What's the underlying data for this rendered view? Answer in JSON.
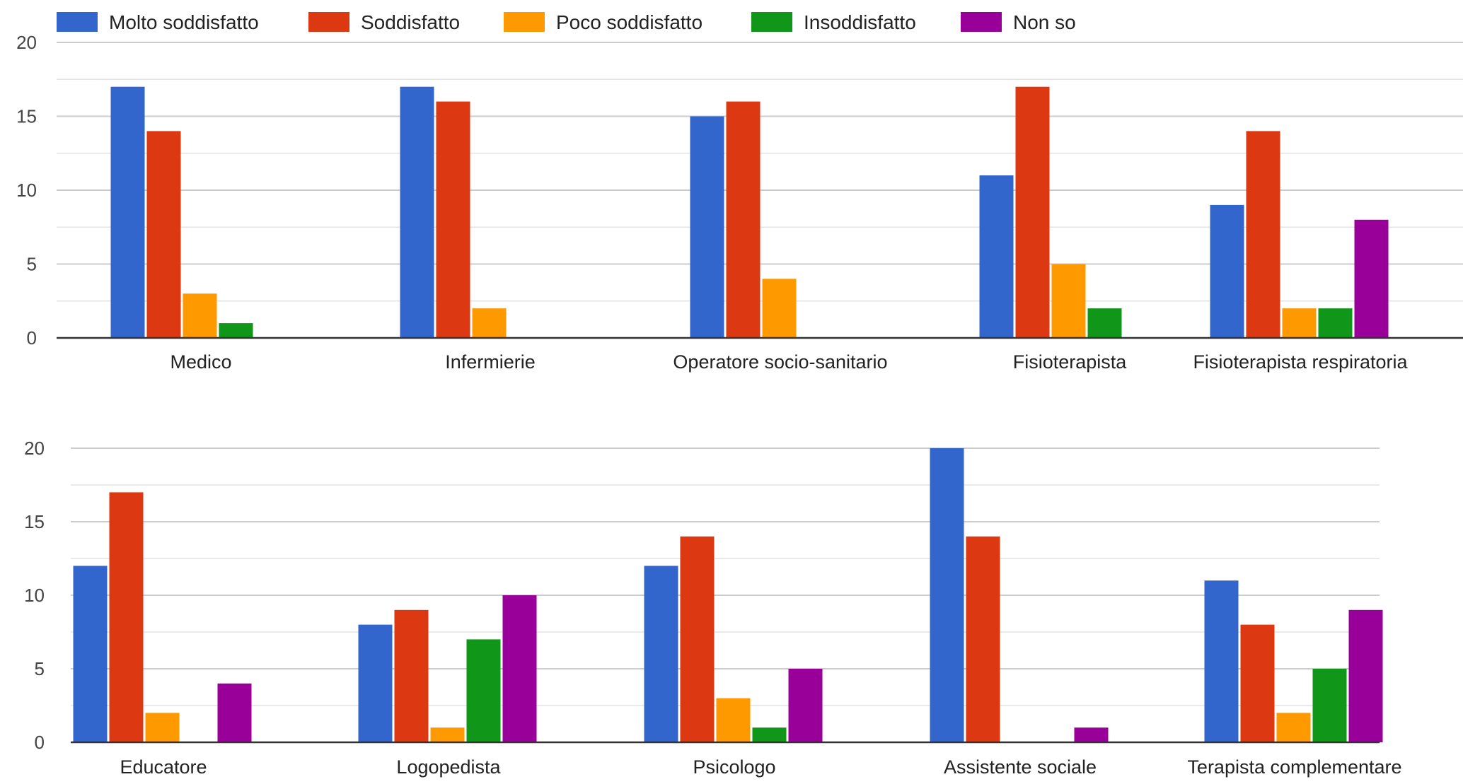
{
  "colors": {
    "Molto soddisfatto": "#3366cc",
    "Soddisfatto": "#dc3912",
    "Poco soddisfatto": "#ff9900",
    "Insoddisfatto": "#109618",
    "Non so": "#990099",
    "gridline": "#e3e3e3",
    "axis": "#333333"
  },
  "legend": {
    "position": "top-left",
    "items": [
      "Molto soddisfatto",
      "Soddisfatto",
      "Poco soddisfatto",
      "Insoddisfatto",
      "Non so"
    ]
  },
  "chart_data": [
    {
      "type": "bar",
      "title": "",
      "xlabel": "",
      "ylabel": "",
      "ylim": [
        0,
        20
      ],
      "yticks": [
        0,
        5,
        10,
        15,
        20
      ],
      "grid": true,
      "categories": [
        "Medico",
        "Infermierie",
        "Operatore socio-sanitario",
        "Fisioterapista",
        "Fisioterapista respiratoria"
      ],
      "series": [
        {
          "name": "Molto soddisfatto",
          "values": [
            17,
            17,
            15,
            11,
            9
          ]
        },
        {
          "name": "Soddisfatto",
          "values": [
            14,
            16,
            16,
            17,
            14
          ]
        },
        {
          "name": "Poco soddisfatto",
          "values": [
            3,
            2,
            4,
            5,
            2
          ]
        },
        {
          "name": "Insoddisfatto",
          "values": [
            1,
            0,
            0,
            2,
            2
          ]
        },
        {
          "name": "Non so",
          "values": [
            0,
            0,
            0,
            0,
            8
          ]
        }
      ]
    },
    {
      "type": "bar",
      "title": "",
      "xlabel": "",
      "ylabel": "",
      "ylim": [
        0,
        20
      ],
      "yticks": [
        0,
        5,
        10,
        15,
        20
      ],
      "grid": true,
      "categories": [
        "Educatore",
        "Logopedista",
        "Psicologo",
        "Assistente sociale",
        "Terapista complementare"
      ],
      "series": [
        {
          "name": "Molto soddisfatto",
          "values": [
            12,
            8,
            12,
            20,
            11
          ]
        },
        {
          "name": "Soddisfatto",
          "values": [
            17,
            9,
            14,
            14,
            8
          ]
        },
        {
          "name": "Poco soddisfatto",
          "values": [
            2,
            1,
            3,
            0,
            2
          ]
        },
        {
          "name": "Insoddisfatto",
          "values": [
            0,
            7,
            1,
            0,
            5
          ]
        },
        {
          "name": "Non so",
          "values": [
            4,
            10,
            5,
            1,
            9
          ]
        }
      ]
    }
  ]
}
